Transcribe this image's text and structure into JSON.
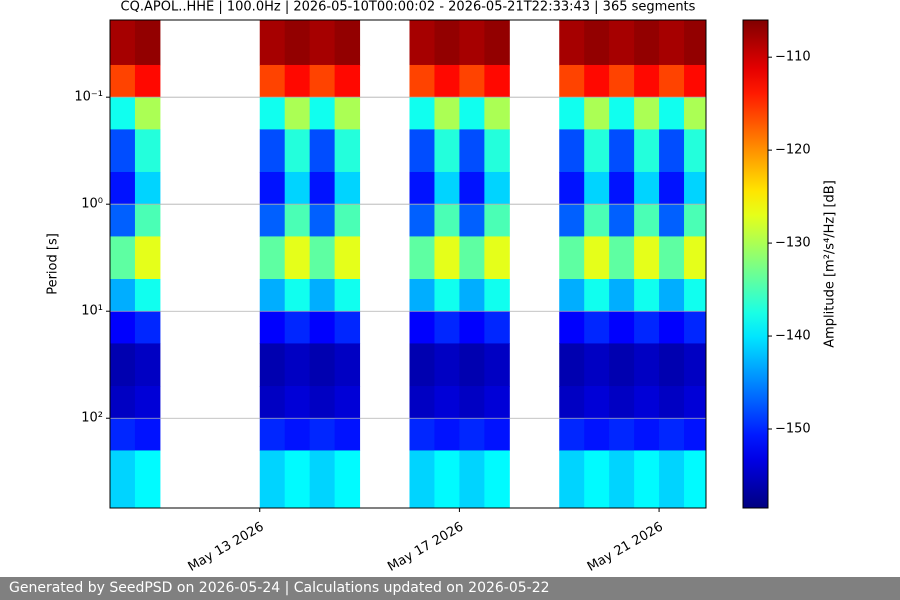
{
  "chart_data": {
    "type": "heatmap",
    "title": "CQ.APOL..HHE | 100.0Hz | 2026-05-10T00:00:02 - 2026-05-21T22:33:43 | 365 segments",
    "y_label": "Period [s]",
    "colorbar_label": "Amplitude [m²/s⁴/Hz] [dB]",
    "xlim": [
      "2026-05-10T00:00:02",
      "2026-05-21T22:33:43"
    ],
    "xticks": [
      {
        "value": "2026-05-13T00:00:00",
        "label": "May 13 2026"
      },
      {
        "value": "2026-05-17T00:00:00",
        "label": "May 17 2026"
      },
      {
        "value": "2026-05-21T00:00:00",
        "label": "May 21 2026"
      }
    ],
    "ylim": [
      0.019,
      690
    ],
    "ylog": true,
    "yinvert": true,
    "grid": true,
    "yticks": [
      {
        "value": 0.1,
        "label": "10⁻¹"
      },
      {
        "value": 1,
        "label": "10⁰"
      },
      {
        "value": 10,
        "label": "10¹"
      },
      {
        "value": 100,
        "label": "10²"
      }
    ],
    "clim": [
      -158.5,
      -106
    ],
    "cticks": [
      {
        "value": -110,
        "label": "−110"
      },
      {
        "value": -120,
        "label": "−120"
      },
      {
        "value": -130,
        "label": "−130"
      },
      {
        "value": -140,
        "label": "−140"
      },
      {
        "value": -150,
        "label": "−150"
      }
    ],
    "colormap": "jet",
    "x_edges": [
      "2026-05-10T00:00:00",
      "2026-05-10T12:00:00",
      "2026-05-11T00:00:00",
      "2026-05-11T12:00:00",
      "2026-05-12T00:00:00",
      "2026-05-12T12:00:00",
      "2026-05-13T00:00:00",
      "2026-05-13T12:00:00",
      "2026-05-14T00:00:00",
      "2026-05-14T12:00:00",
      "2026-05-15T00:00:00",
      "2026-05-15T12:00:00",
      "2026-05-16T00:00:00",
      "2026-05-16T12:00:00",
      "2026-05-17T00:00:00",
      "2026-05-17T12:00:00",
      "2026-05-18T00:00:00",
      "2026-05-18T12:00:00",
      "2026-05-19T00:00:00",
      "2026-05-19T12:00:00",
      "2026-05-20T00:00:00",
      "2026-05-20T12:00:00",
      "2026-05-21T00:00:00",
      "2026-05-21T12:00:00",
      "2026-05-22T00:00:00"
    ],
    "y_edges": [
      0.019,
      0.05,
      0.1,
      0.2,
      0.5,
      1,
      2,
      5,
      10,
      20,
      50,
      100,
      200,
      690
    ],
    "z": [
      [
        -108,
        -107,
        null,
        null,
        null,
        null,
        -108,
        -107,
        -108,
        -107,
        null,
        null,
        -108,
        -107,
        -108,
        -107,
        null,
        null,
        -108,
        -107,
        -108,
        -107,
        -108,
        -107
      ],
      [
        -116,
        -113,
        null,
        null,
        null,
        null,
        -116,
        -113,
        -116,
        -113,
        null,
        null,
        -116,
        -113,
        -116,
        -113,
        null,
        null,
        -116,
        -113,
        -116,
        -113,
        -116,
        -113
      ],
      [
        -138,
        -130,
        null,
        null,
        null,
        null,
        -138,
        -130,
        -138,
        -130,
        null,
        null,
        -138,
        -130,
        -138,
        -130,
        null,
        null,
        -138,
        -130,
        -138,
        -130,
        -138,
        -130
      ],
      [
        -148,
        -137,
        null,
        null,
        null,
        null,
        -148,
        -137,
        -148,
        -137,
        null,
        null,
        -148,
        -137,
        -148,
        -137,
        null,
        null,
        -148,
        -137,
        -148,
        -137,
        -148,
        -137
      ],
      [
        -151,
        -141,
        null,
        null,
        null,
        null,
        -151,
        -141,
        -151,
        -141,
        null,
        null,
        -151,
        -141,
        -151,
        -141,
        null,
        null,
        -151,
        -141,
        -151,
        -141,
        -151,
        -141
      ],
      [
        -147,
        -135,
        null,
        null,
        null,
        null,
        -147,
        -135,
        -147,
        -135,
        null,
        null,
        -147,
        -135,
        -147,
        -135,
        null,
        null,
        -147,
        -135,
        -147,
        -135,
        -147,
        -135
      ],
      [
        -134,
        -127,
        null,
        null,
        null,
        null,
        -134,
        -127,
        -134,
        -127,
        null,
        null,
        -134,
        -127,
        -134,
        -127,
        null,
        null,
        -134,
        -127,
        -134,
        -127,
        -134,
        -127
      ],
      [
        -143,
        -138,
        null,
        null,
        null,
        null,
        -143,
        -138,
        -143,
        -138,
        null,
        null,
        -143,
        -138,
        -143,
        -138,
        null,
        null,
        -143,
        -138,
        -143,
        -138,
        -143,
        -138
      ],
      [
        -152,
        -150,
        null,
        null,
        null,
        null,
        -152,
        -150,
        -152,
        -150,
        null,
        null,
        -152,
        -150,
        -152,
        -150,
        null,
        null,
        -152,
        -150,
        -152,
        -150,
        -152,
        -150
      ],
      [
        -156,
        -155,
        null,
        null,
        null,
        null,
        -156,
        -155,
        -156,
        -155,
        null,
        null,
        -156,
        -155,
        -156,
        -155,
        null,
        null,
        -156,
        -155,
        -156,
        -155,
        -156,
        -155
      ],
      [
        -155,
        -154,
        null,
        null,
        null,
        null,
        -155,
        -154,
        -155,
        -154,
        null,
        null,
        -155,
        -154,
        -155,
        -154,
        null,
        null,
        -155,
        -154,
        -155,
        -154,
        -155,
        -154
      ],
      [
        -150,
        -151,
        null,
        null,
        null,
        null,
        -150,
        -151,
        -150,
        -151,
        null,
        null,
        -150,
        -151,
        -150,
        -151,
        null,
        null,
        -150,
        -151,
        -150,
        -151,
        -150,
        -151
      ],
      [
        -141,
        -139,
        null,
        null,
        null,
        null,
        -141,
        -139,
        -141,
        -139,
        null,
        null,
        -141,
        -139,
        -141,
        -139,
        null,
        null,
        -141,
        -139,
        -141,
        -139,
        -141,
        -139
      ]
    ]
  },
  "footer": "Generated by SeedPSD on 2026-05-24 | Calculations updated on 2026-05-22"
}
